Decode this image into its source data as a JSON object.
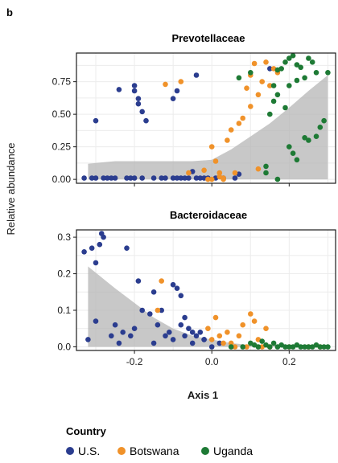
{
  "panel_letter": "b",
  "ylabel": "Relative abundance",
  "xlabel": "Axis 1",
  "legend": {
    "title": "Country",
    "entries": [
      {
        "label": "U.S.",
        "color": "#2b3d8f"
      },
      {
        "label": "Botswana",
        "color": "#f0922a"
      },
      {
        "label": "Uganda",
        "color": "#1e7a35"
      }
    ]
  },
  "colors": {
    "us": "#2b3d8f",
    "botswana": "#f0922a",
    "uganda": "#1e7a35",
    "ribbon": "#b5b5b5",
    "grid": "#ececec"
  },
  "chart_data": [
    {
      "type": "scatter",
      "title": "Prevotellaceae",
      "xlim": [
        -0.35,
        0.32
      ],
      "ylim": [
        -0.03,
        0.97
      ],
      "x_ticks": [
        -0.2,
        0.0,
        0.2
      ],
      "y_ticks": [
        0.0,
        0.25,
        0.5,
        0.75
      ],
      "y_tick_labels": [
        "0.00",
        "0.25",
        "0.50",
        "0.75"
      ],
      "x_tick_labels_shown": false,
      "smooth": {
        "x": [
          -0.32,
          -0.25,
          -0.2,
          -0.15,
          -0.1,
          -0.05,
          0.0,
          0.05,
          0.1,
          0.15,
          0.2,
          0.25,
          0.3
        ],
        "upper": [
          0.12,
          0.14,
          0.14,
          0.14,
          0.14,
          0.14,
          0.15,
          0.23,
          0.33,
          0.43,
          0.55,
          0.68,
          0.8
        ],
        "lower": [
          0.0,
          0.0,
          0.0,
          0.0,
          0.0,
          0.0,
          0.0,
          0.0,
          0.0,
          0.0,
          0.0,
          0.0,
          0.0
        ]
      },
      "series": [
        {
          "key": "us",
          "name": "U.S.",
          "color": "#2b3d8f",
          "x": [
            -0.3,
            -0.24,
            -0.2,
            -0.2,
            -0.19,
            -0.19,
            -0.18,
            -0.17,
            -0.1,
            -0.09,
            -0.04,
            -0.05,
            -0.33,
            -0.31,
            -0.3,
            -0.28,
            -0.27,
            -0.26,
            -0.25,
            -0.22,
            -0.21,
            -0.2,
            -0.18,
            -0.15,
            -0.13,
            -0.12,
            -0.1,
            -0.09,
            -0.08,
            -0.07,
            -0.06,
            -0.04,
            -0.03,
            -0.02,
            -0.01,
            0.01,
            0.03,
            0.06,
            0.07,
            0.15
          ],
          "y": [
            0.45,
            0.69,
            0.72,
            0.68,
            0.62,
            0.58,
            0.52,
            0.45,
            0.62,
            0.68,
            0.8,
            0.06,
            0.01,
            0.01,
            0.01,
            0.01,
            0.01,
            0.01,
            0.01,
            0.01,
            0.01,
            0.01,
            0.01,
            0.01,
            0.01,
            0.01,
            0.01,
            0.01,
            0.01,
            0.01,
            0.01,
            0.01,
            0.01,
            0.01,
            0.01,
            0.01,
            0.01,
            0.01,
            0.04,
            0.85
          ]
        },
        {
          "key": "botswana",
          "name": "Botswana",
          "color": "#f0922a",
          "x": [
            -0.12,
            -0.08,
            -0.06,
            -0.02,
            0.0,
            0.01,
            0.02,
            0.03,
            0.06,
            0.08,
            0.1,
            0.12,
            0.15,
            0.16,
            0.14,
            0.11,
            0.07,
            0.05,
            0.04,
            0.02,
            0.0,
            0.09,
            0.13,
            0.17,
            0.1,
            0.12,
            -0.01,
            0.03
          ],
          "y": [
            0.73,
            0.75,
            0.05,
            0.07,
            0.25,
            0.14,
            0.02,
            0.01,
            0.05,
            0.47,
            0.56,
            0.65,
            0.72,
            0.85,
            0.9,
            0.89,
            0.43,
            0.38,
            0.3,
            0.05,
            0.0,
            0.7,
            0.75,
            0.82,
            0.8,
            0.08,
            0.0,
            0.0
          ]
        },
        {
          "key": "uganda",
          "name": "Uganda",
          "color": "#1e7a35",
          "x": [
            0.07,
            0.1,
            0.14,
            0.16,
            0.17,
            0.18,
            0.19,
            0.2,
            0.21,
            0.22,
            0.23,
            0.24,
            0.25,
            0.26,
            0.27,
            0.15,
            0.16,
            0.17,
            0.19,
            0.2,
            0.22,
            0.24,
            0.25,
            0.27,
            0.28,
            0.29,
            0.3,
            0.2,
            0.21,
            0.22,
            0.17,
            0.14
          ],
          "y": [
            0.78,
            0.82,
            0.1,
            0.72,
            0.84,
            0.85,
            0.9,
            0.93,
            0.95,
            0.88,
            0.86,
            0.78,
            0.93,
            0.9,
            0.82,
            0.5,
            0.6,
            0.65,
            0.55,
            0.72,
            0.76,
            0.32,
            0.3,
            0.33,
            0.4,
            0.45,
            0.82,
            0.25,
            0.2,
            0.15,
            0.0,
            0.05
          ]
        }
      ]
    },
    {
      "type": "scatter",
      "title": "Bacteroidaceae",
      "xlim": [
        -0.35,
        0.32
      ],
      "ylim": [
        -0.01,
        0.32
      ],
      "x_ticks": [
        -0.2,
        0.0,
        0.2
      ],
      "x_tick_labels": [
        "-0.2",
        "0.0",
        "0.2"
      ],
      "y_ticks": [
        0.0,
        0.1,
        0.2,
        0.3
      ],
      "y_tick_labels": [
        "0.0",
        "0.1",
        "0.2",
        "0.3"
      ],
      "smooth": {
        "x": [
          -0.32,
          -0.25,
          -0.2,
          -0.15,
          -0.1,
          -0.05,
          0.0,
          0.05,
          0.1,
          0.15,
          0.2,
          0.25,
          0.3
        ],
        "upper": [
          0.22,
          0.16,
          0.12,
          0.08,
          0.05,
          0.03,
          0.02,
          0.01,
          0.005,
          0.005,
          0.005,
          0.005,
          0.005
        ],
        "lower": [
          0.0,
          0.0,
          0.0,
          0.0,
          0.0,
          0.0,
          0.0,
          0.0,
          0.0,
          0.0,
          0.0,
          0.0,
          0.0
        ]
      },
      "series": [
        {
          "key": "us",
          "name": "U.S.",
          "color": "#2b3d8f",
          "x": [
            -0.33,
            -0.31,
            -0.29,
            -0.28,
            -0.285,
            -0.3,
            -0.22,
            -0.19,
            -0.15,
            -0.1,
            -0.09,
            -0.08,
            -0.07,
            -0.08,
            -0.06,
            -0.05,
            -0.04,
            -0.03,
            -0.02,
            -0.1,
            -0.12,
            -0.13,
            -0.2,
            -0.21,
            -0.23,
            -0.25,
            -0.15,
            -0.05,
            0.0,
            0.02,
            -0.32,
            -0.3,
            -0.26,
            -0.24,
            -0.18,
            -0.16,
            -0.14,
            -0.11,
            -0.07,
            -0.02
          ],
          "y": [
            0.26,
            0.27,
            0.28,
            0.3,
            0.31,
            0.23,
            0.27,
            0.18,
            0.15,
            0.17,
            0.16,
            0.14,
            0.08,
            0.06,
            0.05,
            0.04,
            0.03,
            0.04,
            0.02,
            0.02,
            0.03,
            0.1,
            0.05,
            0.03,
            0.04,
            0.06,
            0.01,
            0.01,
            0.0,
            0.01,
            0.02,
            0.07,
            0.03,
            0.01,
            0.1,
            0.09,
            0.06,
            0.04,
            0.03,
            0.02
          ]
        },
        {
          "key": "botswana",
          "name": "Botswana",
          "color": "#f0922a",
          "x": [
            -0.13,
            -0.14,
            -0.01,
            0.0,
            0.02,
            0.03,
            0.05,
            0.07,
            0.08,
            0.1,
            0.11,
            0.14,
            0.13,
            0.12,
            0.06,
            0.04,
            0.01,
            0.09,
            0.15,
            0.2,
            0.25,
            0.28
          ],
          "y": [
            0.18,
            0.1,
            0.05,
            0.02,
            0.03,
            0.01,
            0.01,
            0.03,
            0.06,
            0.09,
            0.07,
            0.05,
            0.0,
            0.02,
            0.0,
            0.04,
            0.08,
            0.0,
            0.0,
            0.0,
            0.0,
            0.0
          ]
        },
        {
          "key": "uganda",
          "name": "Uganda",
          "color": "#1e7a35",
          "x": [
            0.05,
            0.08,
            0.1,
            0.12,
            0.14,
            0.16,
            0.17,
            0.18,
            0.19,
            0.2,
            0.21,
            0.22,
            0.23,
            0.24,
            0.25,
            0.26,
            0.27,
            0.28,
            0.29,
            0.3,
            0.15,
            0.13,
            0.11
          ],
          "y": [
            0.0,
            0.0,
            0.01,
            0.0,
            0.005,
            0.01,
            0.0,
            0.005,
            0.0,
            0.0,
            0.0,
            0.005,
            0.0,
            0.0,
            0.0,
            0.0,
            0.005,
            0.0,
            0.0,
            0.0,
            0.0,
            0.015,
            0.005
          ]
        }
      ]
    }
  ]
}
